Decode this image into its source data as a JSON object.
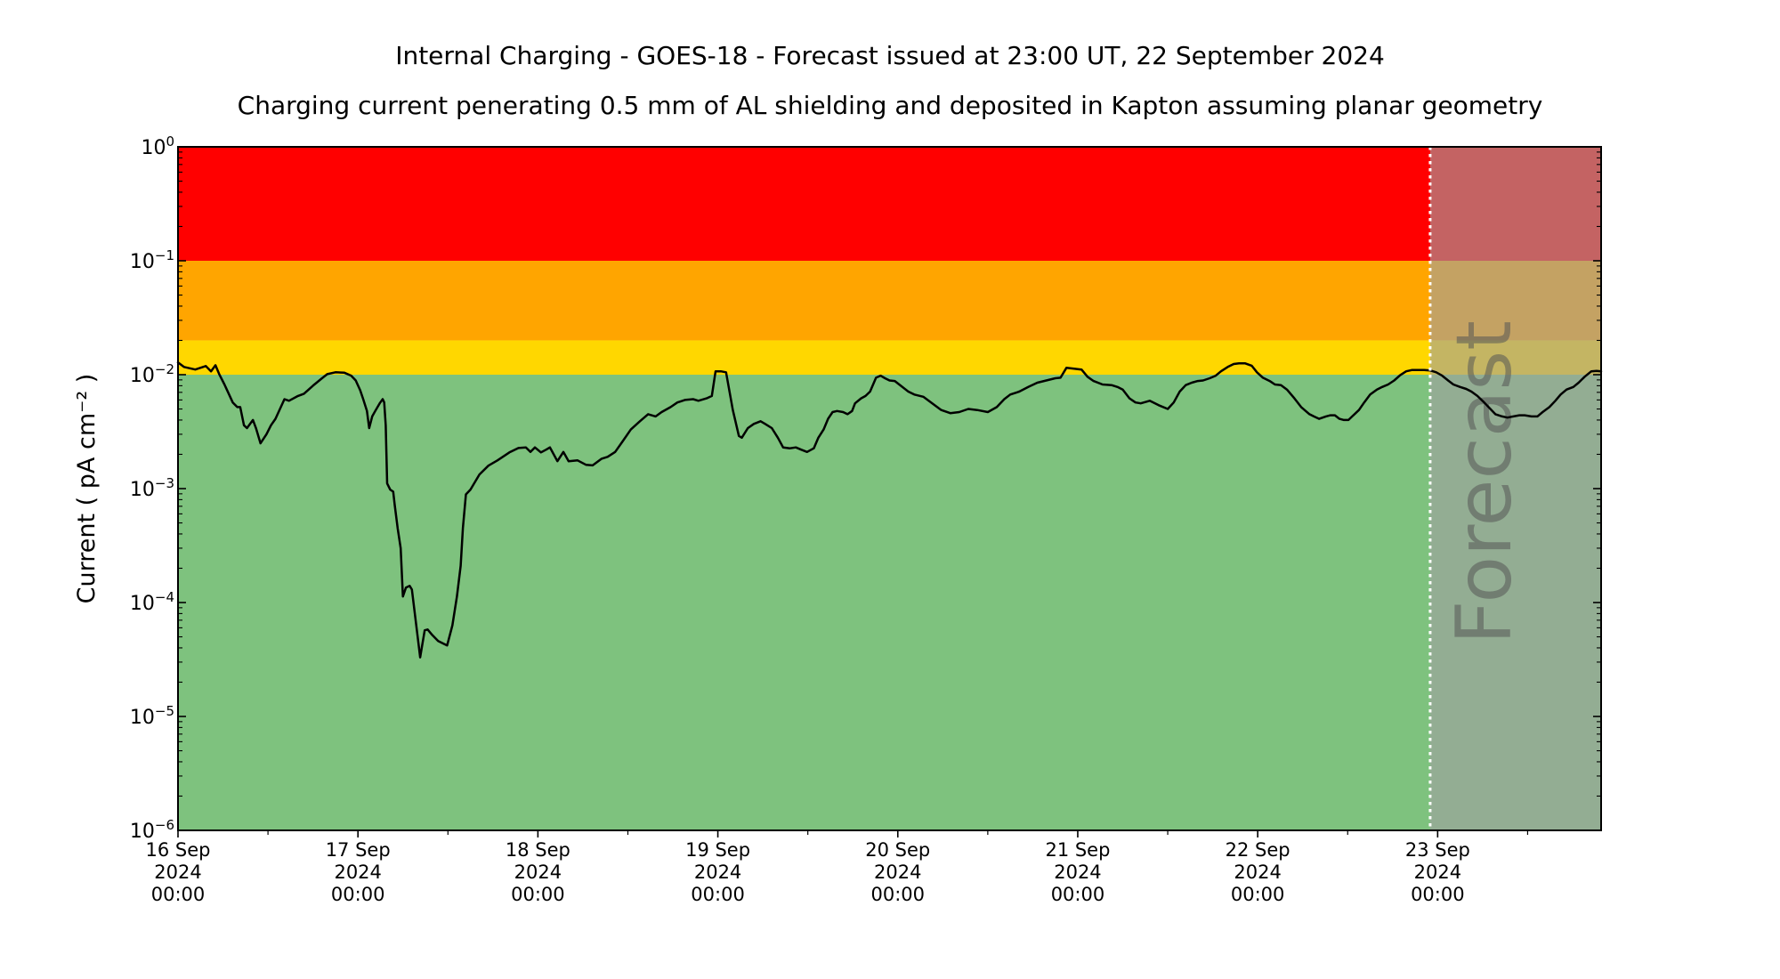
{
  "chart_data": {
    "type": "line",
    "title": "Internal Charging - GOES-18 - Forecast issued at 23:00 UT, 22 September 2024",
    "subtitle": "Charging current penerating 0.5 mm of AL shielding and deposited in Kapton assuming planar geometry",
    "ylabel": "Current ( pA cm⁻² )",
    "y_scale": "log",
    "y_range": [
      1e-06,
      1
    ],
    "x_unit": "hours since 16 Sep 2024 00:00 UT",
    "x_range_hours": [
      0,
      189.8
    ],
    "x_minor_tick_hours": 12,
    "grid": false,
    "legend": false,
    "x_ticks": [
      {
        "hour": 0,
        "line1": "16 Sep",
        "line2": "2024",
        "line3": "00:00"
      },
      {
        "hour": 24,
        "line1": "17 Sep",
        "line2": "2024",
        "line3": "00:00"
      },
      {
        "hour": 48,
        "line1": "18 Sep",
        "line2": "2024",
        "line3": "00:00"
      },
      {
        "hour": 72,
        "line1": "19 Sep",
        "line2": "2024",
        "line3": "00:00"
      },
      {
        "hour": 96,
        "line1": "20 Sep",
        "line2": "2024",
        "line3": "00:00"
      },
      {
        "hour": 120,
        "line1": "21 Sep",
        "line2": "2024",
        "line3": "00:00"
      },
      {
        "hour": 144,
        "line1": "22 Sep",
        "line2": "2024",
        "line3": "00:00"
      },
      {
        "hour": 168,
        "line1": "23 Sep",
        "line2": "2024",
        "line3": "00:00"
      }
    ],
    "y_ticks": [
      {
        "base": "10",
        "exp": "0"
      },
      {
        "base": "10",
        "exp": "−1"
      },
      {
        "base": "10",
        "exp": "−2"
      },
      {
        "base": "10",
        "exp": "−3"
      },
      {
        "base": "10",
        "exp": "−4"
      },
      {
        "base": "10",
        "exp": "−5"
      },
      {
        "base": "10",
        "exp": "−6"
      }
    ],
    "bands": [
      {
        "name": "red-alert",
        "from": 0.1,
        "to": 1,
        "color": "#ff0000"
      },
      {
        "name": "orange-warning",
        "from": 0.02,
        "to": 0.1,
        "color": "#ffa500"
      },
      {
        "name": "yellow-caution",
        "from": 0.01,
        "to": 0.02,
        "color": "#ffd700"
      },
      {
        "name": "green-quiet",
        "from": 1e-06,
        "to": 0.01,
        "color": "#7ec27e"
      }
    ],
    "forecast": {
      "label": "Forecast",
      "start_hour": 167,
      "divider_color": "#ffffff",
      "overlay_color": "#a0a0a0",
      "overlay_opacity": 0.62,
      "label_color": "#555555"
    },
    "series": [
      {
        "name": "charging-current",
        "color": "#000000",
        "points": [
          [
            0,
            0.0128
          ],
          [
            0.8,
            0.0117
          ],
          [
            2.3,
            0.0111
          ],
          [
            3.7,
            0.0119
          ],
          [
            4.4,
            0.0107
          ],
          [
            5,
            0.0121
          ],
          [
            5.5,
            0.0101
          ],
          [
            6.2,
            0.0082
          ],
          [
            7.3,
            0.0057
          ],
          [
            7.9,
            0.0052
          ],
          [
            8.3,
            0.0052
          ],
          [
            8.8,
            0.0036
          ],
          [
            9.2,
            0.0034
          ],
          [
            10,
            0.004
          ],
          [
            10.4,
            0.0034
          ],
          [
            11,
            0.0025
          ],
          [
            11.8,
            0.003
          ],
          [
            12.4,
            0.0036
          ],
          [
            13,
            0.0041
          ],
          [
            14.2,
            0.0061
          ],
          [
            14.8,
            0.0059
          ],
          [
            16,
            0.0065
          ],
          [
            16.8,
            0.0068
          ],
          [
            18,
            0.008
          ],
          [
            19.2,
            0.0093
          ],
          [
            19.9,
            0.0101
          ],
          [
            21,
            0.0105
          ],
          [
            22.2,
            0.0104
          ],
          [
            23.1,
            0.0098
          ],
          [
            23.7,
            0.0089
          ],
          [
            24.3,
            0.0073
          ],
          [
            24.7,
            0.0061
          ],
          [
            25.2,
            0.0048
          ],
          [
            25.5,
            0.0034
          ],
          [
            25.9,
            0.0043
          ],
          [
            26.3,
            0.0048
          ],
          [
            26.9,
            0.0056
          ],
          [
            27.3,
            0.0061
          ],
          [
            27.5,
            0.0057
          ],
          [
            27.7,
            0.0036
          ],
          [
            27.9,
            0.00111
          ],
          [
            28.3,
            0.00098
          ],
          [
            28.7,
            0.00094
          ],
          [
            28.9,
            0.00072
          ],
          [
            29.3,
            0.00045
          ],
          [
            29.7,
            0.0003
          ],
          [
            30,
            0.000113
          ],
          [
            30.4,
            0.000135
          ],
          [
            30.9,
            0.00014
          ],
          [
            31.2,
            0.00013
          ],
          [
            32.3,
            3.3e-05
          ],
          [
            32.9,
            5.7e-05
          ],
          [
            33.3,
            5.8e-05
          ],
          [
            33.9,
            5.2e-05
          ],
          [
            34.7,
            4.6e-05
          ],
          [
            35.9,
            4.2e-05
          ],
          [
            36.6,
            6.3e-05
          ],
          [
            37.2,
            0.000113
          ],
          [
            37.7,
            0.00021
          ],
          [
            38,
            0.00045
          ],
          [
            38.4,
            0.00089
          ],
          [
            39,
            0.00098
          ],
          [
            40.2,
            0.00133
          ],
          [
            41.4,
            0.00159
          ],
          [
            42.6,
            0.00177
          ],
          [
            44.2,
            0.00208
          ],
          [
            45.4,
            0.00227
          ],
          [
            46.4,
            0.0023
          ],
          [
            47,
            0.0021
          ],
          [
            47.6,
            0.0023
          ],
          [
            48.4,
            0.00208
          ],
          [
            49.1,
            0.0022
          ],
          [
            49.6,
            0.0023
          ],
          [
            50.6,
            0.00174
          ],
          [
            51.4,
            0.0021
          ],
          [
            52.1,
            0.00174
          ],
          [
            53.3,
            0.00177
          ],
          [
            54.4,
            0.00162
          ],
          [
            55.3,
            0.0016
          ],
          [
            56.5,
            0.00183
          ],
          [
            57.3,
            0.0019
          ],
          [
            58.3,
            0.0021
          ],
          [
            59.3,
            0.0026
          ],
          [
            60.4,
            0.0033
          ],
          [
            61.6,
            0.0039
          ],
          [
            62.7,
            0.0045
          ],
          [
            63.7,
            0.0043
          ],
          [
            64.5,
            0.0047
          ],
          [
            65.7,
            0.0052
          ],
          [
            66.6,
            0.0057
          ],
          [
            67.6,
            0.006
          ],
          [
            68.7,
            0.0061
          ],
          [
            69.4,
            0.0059
          ],
          [
            70.5,
            0.0062
          ],
          [
            71.2,
            0.0065
          ],
          [
            71.7,
            0.0107
          ],
          [
            72.4,
            0.0107
          ],
          [
            73.1,
            0.0105
          ],
          [
            74,
            0.0049
          ],
          [
            74.8,
            0.0029
          ],
          [
            75.2,
            0.0028
          ],
          [
            76,
            0.0034
          ],
          [
            76.8,
            0.0037
          ],
          [
            77.7,
            0.0039
          ],
          [
            78.3,
            0.0037
          ],
          [
            79.2,
            0.0034
          ],
          [
            80,
            0.0028
          ],
          [
            80.7,
            0.0023
          ],
          [
            81.6,
            0.00226
          ],
          [
            82.4,
            0.0023
          ],
          [
            83.1,
            0.0022
          ],
          [
            83.9,
            0.0021
          ],
          [
            84.8,
            0.00226
          ],
          [
            85.4,
            0.0028
          ],
          [
            86.1,
            0.0033
          ],
          [
            86.7,
            0.0041
          ],
          [
            87.3,
            0.0047
          ],
          [
            87.9,
            0.0048
          ],
          [
            88.7,
            0.0047
          ],
          [
            89.3,
            0.0045
          ],
          [
            89.9,
            0.0048
          ],
          [
            90.3,
            0.0056
          ],
          [
            91.1,
            0.0062
          ],
          [
            91.7,
            0.0065
          ],
          [
            92.3,
            0.0071
          ],
          [
            93.1,
            0.0094
          ],
          [
            93.7,
            0.0098
          ],
          [
            94.3,
            0.0093
          ],
          [
            94.9,
            0.0089
          ],
          [
            95.6,
            0.0088
          ],
          [
            96.4,
            0.008
          ],
          [
            97.4,
            0.0071
          ],
          [
            98.2,
            0.0067
          ],
          [
            99.4,
            0.0064
          ],
          [
            100.6,
            0.0056
          ],
          [
            101.8,
            0.0049
          ],
          [
            103,
            0.0046
          ],
          [
            104.2,
            0.0047
          ],
          [
            105.4,
            0.005
          ],
          [
            106.6,
            0.0049
          ],
          [
            108,
            0.0047
          ],
          [
            109.2,
            0.0052
          ],
          [
            110.2,
            0.0061
          ],
          [
            111,
            0.0067
          ],
          [
            112.2,
            0.0071
          ],
          [
            113.4,
            0.0078
          ],
          [
            114.6,
            0.0085
          ],
          [
            115.8,
            0.0089
          ],
          [
            117,
            0.0093
          ],
          [
            117.7,
            0.0094
          ],
          [
            118.5,
            0.0115
          ],
          [
            120.5,
            0.0111
          ],
          [
            121.3,
            0.0096
          ],
          [
            122.1,
            0.0088
          ],
          [
            123.3,
            0.0082
          ],
          [
            124.5,
            0.0081
          ],
          [
            125.3,
            0.0078
          ],
          [
            126,
            0.0074
          ],
          [
            126.9,
            0.0062
          ],
          [
            127.7,
            0.0057
          ],
          [
            128.4,
            0.0056
          ],
          [
            129.6,
            0.0059
          ],
          [
            130.8,
            0.0054
          ],
          [
            132,
            0.005
          ],
          [
            132.8,
            0.0057
          ],
          [
            133.6,
            0.0071
          ],
          [
            134.4,
            0.0081
          ],
          [
            135.2,
            0.0085
          ],
          [
            136,
            0.0088
          ],
          [
            136.7,
            0.0089
          ],
          [
            137.6,
            0.0093
          ],
          [
            138.4,
            0.0098
          ],
          [
            139.1,
            0.0107
          ],
          [
            140,
            0.0117
          ],
          [
            140.8,
            0.0124
          ],
          [
            141.5,
            0.0126
          ],
          [
            142.3,
            0.0126
          ],
          [
            143.2,
            0.012
          ],
          [
            143.9,
            0.0105
          ],
          [
            144.7,
            0.0094
          ],
          [
            145.6,
            0.0088
          ],
          [
            146.3,
            0.0082
          ],
          [
            147.1,
            0.0081
          ],
          [
            147.9,
            0.0074
          ],
          [
            148.9,
            0.0062
          ],
          [
            149.8,
            0.0052
          ],
          [
            150.9,
            0.0045
          ],
          [
            151.5,
            0.0043
          ],
          [
            152.2,
            0.0041
          ],
          [
            153.1,
            0.0043
          ],
          [
            153.7,
            0.0044
          ],
          [
            154.3,
            0.0044
          ],
          [
            154.9,
            0.0041
          ],
          [
            155.5,
            0.004
          ],
          [
            156.1,
            0.004
          ],
          [
            156.6,
            0.0043
          ],
          [
            157.5,
            0.0049
          ],
          [
            158.2,
            0.0057
          ],
          [
            159,
            0.0067
          ],
          [
            159.9,
            0.0074
          ],
          [
            160.6,
            0.0078
          ],
          [
            161.4,
            0.0082
          ],
          [
            162.2,
            0.0089
          ],
          [
            163,
            0.0099
          ],
          [
            163.8,
            0.0107
          ],
          [
            164.6,
            0.011
          ],
          [
            165.3,
            0.011
          ],
          [
            166.2,
            0.011
          ],
          [
            167,
            0.0109
          ],
          [
            167.8,
            0.0105
          ],
          [
            168.6,
            0.0098
          ],
          [
            169.4,
            0.0089
          ],
          [
            170.1,
            0.0082
          ],
          [
            171,
            0.0078
          ],
          [
            171.8,
            0.0075
          ],
          [
            172.5,
            0.0071
          ],
          [
            173.3,
            0.0065
          ],
          [
            174.2,
            0.0057
          ],
          [
            174.9,
            0.0051
          ],
          [
            175.7,
            0.0045
          ],
          [
            176.6,
            0.0043
          ],
          [
            177.3,
            0.0042
          ],
          [
            178.1,
            0.0043
          ],
          [
            178.9,
            0.0044
          ],
          [
            179.6,
            0.0044
          ],
          [
            180.5,
            0.0043
          ],
          [
            181.3,
            0.0043
          ],
          [
            182,
            0.0047
          ],
          [
            182.9,
            0.0052
          ],
          [
            183.7,
            0.0059
          ],
          [
            184.4,
            0.0067
          ],
          [
            185.2,
            0.0074
          ],
          [
            186.1,
            0.0078
          ],
          [
            186.8,
            0.0085
          ],
          [
            187.6,
            0.0096
          ],
          [
            188.5,
            0.0107
          ],
          [
            189.2,
            0.0108
          ],
          [
            189.8,
            0.0107
          ]
        ]
      }
    ]
  }
}
